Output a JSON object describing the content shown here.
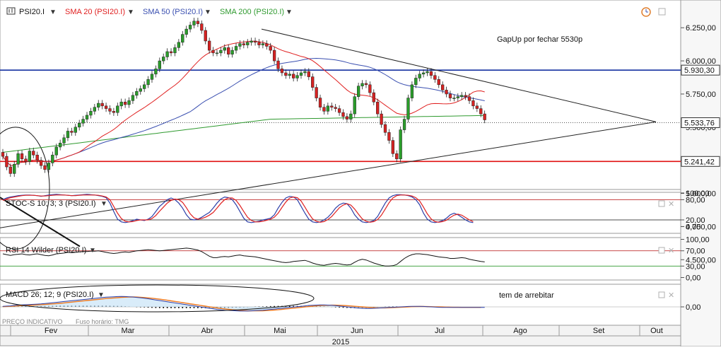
{
  "header": {
    "symbol": "PSI20.I",
    "sma20_label": "SMA 20 (PSI20.I)",
    "sma50_label": "SMA 50 (PSI20.I)",
    "sma200_label": "SMA 200 (PSI20.I)"
  },
  "colors": {
    "bull": "#2a9d2a",
    "bear": "#d62222",
    "sma20": "#e02020",
    "sma50": "#3a4fb0",
    "sma200": "#2f9a2f",
    "support": "#e01010",
    "resistance": "#1530a0",
    "trendline": "#222222",
    "stoch_k": "#2c3fa8",
    "stoch_d": "#e02020",
    "macd_line": "#2c3fa8",
    "macd_signal": "#f07a1e"
  },
  "annotations": {
    "gapup": "GapUp por fechar 5530p",
    "arbitrage": "tem de arrebitar"
  },
  "footer": {
    "source": "PREÇO INDICATIVO",
    "timezone": "Fuso horário: TMG",
    "year": "2015"
  },
  "chart_data": [
    {
      "type": "candlestick",
      "symbol": "PSI20.I",
      "x_labels": [
        "Fev",
        "Mar",
        "Abr",
        "Mai",
        "Jun",
        "Jul",
        "Ago",
        "Set",
        "Out"
      ],
      "y_ticks": [
        "6.250,00",
        "6.000,00",
        "5.750,00",
        "5.500,00",
        "5.250,00",
        "5.000,00",
        "4.750,00",
        "4.500,00"
      ],
      "ylim": [
        4450,
        6380
      ],
      "price_tags": [
        {
          "label": "5.930,30",
          "value": 5930.3
        },
        {
          "label": "5.533,76",
          "value": 5533.76
        },
        {
          "label": "5.241,42",
          "value": 5241.42
        }
      ],
      "horizontal_lines": [
        {
          "name": "resistance",
          "value": 5930.3
        },
        {
          "name": "support",
          "value": 5241.42
        }
      ],
      "closes": [
        5280,
        5200,
        5150,
        5220,
        5300,
        5260,
        5240,
        5320,
        5290,
        5250,
        5210,
        5180,
        5230,
        5290,
        5350,
        5380,
        5420,
        5470,
        5460,
        5500,
        5530,
        5560,
        5590,
        5620,
        5650,
        5680,
        5660,
        5640,
        5620,
        5610,
        5660,
        5690,
        5670,
        5700,
        5740,
        5770,
        5790,
        5820,
        5860,
        5900,
        5940,
        6000,
        6030,
        6070,
        6060,
        6100,
        6140,
        6200,
        6240,
        6270,
        6300,
        6280,
        6230,
        6150,
        6080,
        6060,
        6060,
        6080,
        6100,
        6050,
        6080,
        6110,
        6130,
        6120,
        6140,
        6150,
        6140,
        6120,
        6130,
        6110,
        6080,
        6000,
        5940,
        5910,
        5890,
        5900,
        5870,
        5890,
        5910,
        5920,
        5880,
        5800,
        5720,
        5650,
        5620,
        5660,
        5650,
        5640,
        5610,
        5580,
        5560,
        5600,
        5730,
        5810,
        5830,
        5820,
        5760,
        5690,
        5600,
        5520,
        5460,
        5400,
        5300,
        5260,
        5480,
        5560,
        5720,
        5820,
        5870,
        5900,
        5910,
        5920,
        5890,
        5860,
        5820,
        5780,
        5750,
        5720,
        5720,
        5730,
        5740,
        5730,
        5700,
        5660,
        5640,
        5600,
        5555
      ]
    },
    {
      "type": "line",
      "name": "STOC-S 10; 3; 3 (PSI20.I)",
      "label": "STOC-S 10; 3; 3 (PSI20.I)",
      "ylim": [
        0,
        100
      ],
      "y_ticks": [
        "100,00",
        "80,00",
        "20,00",
        "0,00"
      ],
      "levels": [
        80,
        20
      ],
      "k": [
        80,
        85,
        88,
        90,
        92,
        93,
        94,
        94,
        93,
        92,
        90,
        92,
        94,
        95,
        96,
        95,
        94,
        93,
        92,
        93,
        94,
        95,
        96,
        95,
        94,
        92,
        90,
        86,
        70,
        45,
        22,
        14,
        12,
        14,
        18,
        22,
        20,
        18,
        22,
        30,
        45,
        60,
        70,
        80,
        85,
        80,
        70,
        55,
        35,
        22,
        20,
        22,
        28,
        35,
        42,
        55,
        70,
        82,
        88,
        86,
        80,
        65,
        45,
        25,
        14,
        12,
        14,
        16,
        20,
        22,
        25,
        35,
        55,
        72,
        85,
        90,
        88,
        80,
        60,
        40,
        22,
        14,
        12,
        14,
        20,
        28,
        40,
        55,
        65,
        70,
        68,
        55,
        35,
        22,
        14,
        12,
        14,
        18,
        30,
        50,
        70,
        85,
        92,
        95,
        95,
        94,
        92,
        88,
        80,
        65,
        40,
        22,
        14,
        12,
        14,
        18,
        25,
        35,
        40,
        35,
        28,
        20,
        14,
        12
      ],
      "d": [
        78,
        82,
        86,
        88,
        90,
        92,
        93,
        93,
        93,
        92,
        91,
        91,
        92,
        93,
        94,
        94,
        94,
        93,
        92,
        92,
        93,
        94,
        94,
        94,
        94,
        93,
        91,
        88,
        80,
        60,
        40,
        24,
        16,
        14,
        15,
        18,
        20,
        20,
        20,
        24,
        33,
        46,
        58,
        70,
        78,
        82,
        80,
        72,
        56,
        38,
        26,
        22,
        24,
        28,
        34,
        42,
        55,
        69,
        80,
        85,
        85,
        78,
        63,
        45,
        28,
        18,
        14,
        14,
        16,
        19,
        22,
        28,
        40,
        57,
        73,
        85,
        88,
        86,
        76,
        58,
        39,
        23,
        16,
        13,
        15,
        21,
        30,
        43,
        56,
        64,
        68,
        64,
        52,
        37,
        23,
        16,
        13,
        15,
        21,
        34,
        52,
        71,
        85,
        92,
        94,
        94,
        93,
        91,
        86,
        76,
        58,
        38,
        23,
        15,
        13,
        15,
        19,
        27,
        34,
        37,
        34,
        27,
        20,
        15
      ]
    },
    {
      "type": "line",
      "name": "RSI 14 Wilder (PSI20.I)",
      "label": "RSI 14 Wilder (PSI20.I)",
      "ylim": [
        0,
        100
      ],
      "y_ticks": [
        "100,00",
        "70,00",
        "30,00",
        "0,00"
      ],
      "levels": [
        70,
        30
      ],
      "values": [
        62,
        60,
        58,
        60,
        61,
        62,
        60,
        59,
        61,
        62,
        60,
        58,
        57,
        59,
        62,
        63,
        64,
        66,
        65,
        66,
        67,
        68,
        68,
        69,
        69,
        70,
        68,
        66,
        64,
        63,
        64,
        66,
        67,
        66,
        68,
        70,
        71,
        72,
        73,
        72,
        71,
        70,
        71,
        72,
        73,
        74,
        75,
        76,
        77,
        76,
        74,
        72,
        68,
        62,
        56,
        52,
        52,
        54,
        55,
        54,
        56,
        58,
        59,
        57,
        56,
        55,
        54,
        52,
        50,
        48,
        46,
        44,
        42,
        40,
        39,
        40,
        42,
        43,
        44,
        45,
        42,
        38,
        35,
        33,
        32,
        34,
        36,
        37,
        36,
        34,
        33,
        34,
        40,
        45,
        48,
        46,
        42,
        38,
        35,
        32,
        30,
        30,
        31,
        34,
        42,
        50,
        56,
        60,
        62,
        62,
        61,
        60,
        58,
        56,
        54,
        53,
        52,
        50,
        50,
        51,
        52,
        51,
        48,
        46,
        44,
        42,
        41
      ]
    },
    {
      "type": "histogram_line",
      "name": "MACD 26; 12; 9 (PSI20.I)",
      "label": "MACD 26; 12; 9 (PSI20.I)",
      "y_ticks": [
        "0,00"
      ],
      "macd": [
        5,
        8,
        10,
        14,
        18,
        20,
        22,
        24,
        26,
        28,
        30,
        34,
        38,
        42,
        46,
        50,
        54,
        58,
        62,
        66,
        70,
        74,
        78,
        82,
        86,
        90,
        94,
        98,
        100,
        102,
        104,
        106,
        104,
        102,
        100,
        96,
        92,
        88,
        82,
        76,
        70,
        64,
        58,
        52,
        46,
        40,
        34,
        28,
        22,
        16,
        10,
        4,
        -2,
        -8,
        -14,
        -20,
        -26,
        -30,
        -34,
        -36,
        -38,
        -40,
        -42,
        -42,
        -42,
        -40,
        -38,
        -36,
        -34,
        -30,
        -26,
        -22,
        -18,
        -14,
        -10,
        -6,
        -2,
        2,
        6,
        10,
        14,
        16,
        18,
        20,
        20,
        18,
        16,
        12,
        8,
        4,
        0,
        -4,
        -8,
        -12,
        -14,
        -16,
        -16,
        -14,
        -12,
        -10,
        -8,
        -6,
        -4,
        -2,
        0,
        2,
        4,
        6,
        6,
        6,
        4,
        2,
        0,
        -2,
        -4,
        -6,
        -6,
        -6,
        -6,
        -6,
        -6,
        -6,
        -6,
        -6,
        -6,
        -6,
        -6
      ],
      "signal": [
        2,
        4,
        6,
        8,
        10,
        12,
        14,
        16,
        18,
        20,
        22,
        24,
        27,
        30,
        33,
        36,
        40,
        44,
        48,
        52,
        56,
        60,
        64,
        68,
        72,
        76,
        80,
        84,
        87,
        90,
        93,
        96,
        98,
        99,
        100,
        99,
        97,
        94,
        91,
        87,
        83,
        78,
        73,
        67,
        61,
        55,
        49,
        43,
        37,
        31,
        25,
        19,
        13,
        7,
        1,
        -5,
        -11,
        -16,
        -21,
        -25,
        -29,
        -32,
        -35,
        -37,
        -39,
        -40,
        -40,
        -40,
        -39,
        -37,
        -35,
        -32,
        -29,
        -25,
        -21,
        -17,
        -13,
        -9,
        -5,
        -1,
        3,
        7,
        10,
        13,
        15,
        16,
        17,
        17,
        16,
        14,
        12,
        9,
        6,
        3,
        0,
        -3,
        -6,
        -8,
        -10,
        -10,
        -10,
        -9,
        -8,
        -6,
        -4,
        -2,
        0,
        2,
        3,
        4,
        4,
        3,
        2,
        1,
        0,
        -1,
        -2,
        -3,
        -4,
        -4,
        -5,
        -5,
        -5,
        -5,
        -5,
        -5
      ]
    }
  ]
}
